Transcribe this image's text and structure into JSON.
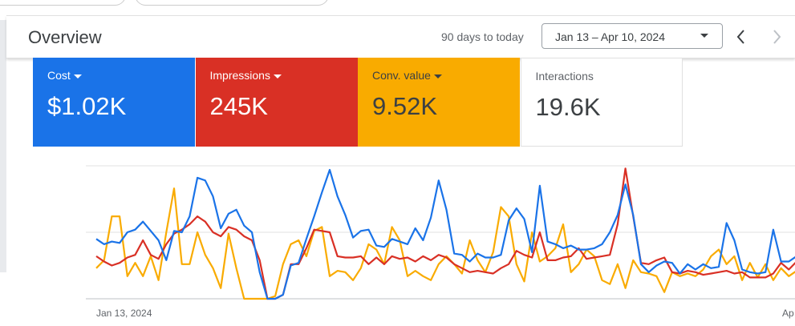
{
  "header": {
    "title": "Overview",
    "range_preset": "90 days to today",
    "date_range": "Jan 13 – Apr 10, 2024"
  },
  "metrics": [
    {
      "label": "Cost",
      "value": "$1.02K",
      "color": "#1a73e8"
    },
    {
      "label": "Impressions",
      "value": "245K",
      "color": "#d93025"
    },
    {
      "label": "Conv. value",
      "value": "9.52K",
      "color": "#f9ab00"
    },
    {
      "label": "Interactions",
      "value": "19.6K",
      "color": "#ffffff"
    }
  ],
  "chart_data": {
    "type": "line",
    "ylim": [
      0,
      100
    ],
    "x_labels": [
      "Jan 13, 2024",
      "Ap"
    ],
    "series": [
      {
        "name": "Cost",
        "color": "#1a73e8",
        "values": [
          45,
          41,
          43,
          42,
          50,
          52,
          58,
          51,
          44,
          29,
          51,
          50,
          62,
          91,
          89,
          77,
          53,
          64,
          67,
          55,
          50,
          20,
          0,
          0,
          3,
          25,
          27,
          45,
          62,
          80,
          97,
          77,
          63,
          46,
          51,
          52,
          40,
          39,
          45,
          43,
          41,
          53,
          44,
          61,
          89,
          67,
          34,
          33,
          28,
          34,
          31,
          31,
          33,
          59,
          68,
          60,
          35,
          85,
          43,
          41,
          38,
          40,
          37,
          37,
          38,
          41,
          50,
          63,
          86,
          63,
          26,
          20,
          25,
          28,
          27,
          19,
          26,
          22,
          26,
          23,
          24,
          57,
          44,
          22,
          20,
          19,
          20,
          52,
          28,
          28,
          32
        ]
      },
      {
        "name": "Impressions",
        "color": "#d93025",
        "values": [
          32,
          28,
          25,
          27,
          31,
          33,
          44,
          33,
          30,
          41,
          49,
          52,
          56,
          62,
          58,
          50,
          47,
          54,
          52,
          47,
          44,
          29,
          0,
          0,
          3,
          26,
          26,
          38,
          52,
          51,
          50,
          32,
          31,
          31,
          32,
          26,
          31,
          26,
          32,
          30,
          31,
          28,
          32,
          29,
          33,
          31,
          26,
          23,
          20,
          21,
          20,
          19,
          23,
          26,
          36,
          33,
          31,
          50,
          29,
          29,
          31,
          32,
          38,
          30,
          31,
          32,
          33,
          56,
          98,
          62,
          27,
          26,
          29,
          31,
          20,
          19,
          21,
          20,
          18,
          19,
          20,
          21,
          19,
          20,
          16,
          16,
          16,
          19,
          27,
          22,
          28
        ]
      },
      {
        "name": "Conv. value",
        "color": "#f9ab00",
        "values": [
          23,
          29,
          62,
          62,
          17,
          27,
          17,
          32,
          14,
          50,
          83,
          26,
          26,
          50,
          33,
          23,
          8,
          49,
          23,
          0,
          0,
          0,
          0,
          2,
          26,
          41,
          44,
          32,
          51,
          54,
          17,
          21,
          20,
          14,
          23,
          41,
          37,
          26,
          54,
          44,
          17,
          21,
          17,
          14,
          26,
          32,
          26,
          19,
          44,
          29,
          20,
          35,
          69,
          62,
          26,
          13,
          50,
          28,
          32,
          38,
          56,
          20,
          26,
          37,
          32,
          14,
          11,
          26,
          8,
          29,
          20,
          19,
          17,
          5,
          20,
          17,
          19,
          17,
          22,
          32,
          37,
          26,
          32,
          14,
          27,
          16,
          26,
          14,
          23,
          17,
          21
        ]
      }
    ]
  }
}
